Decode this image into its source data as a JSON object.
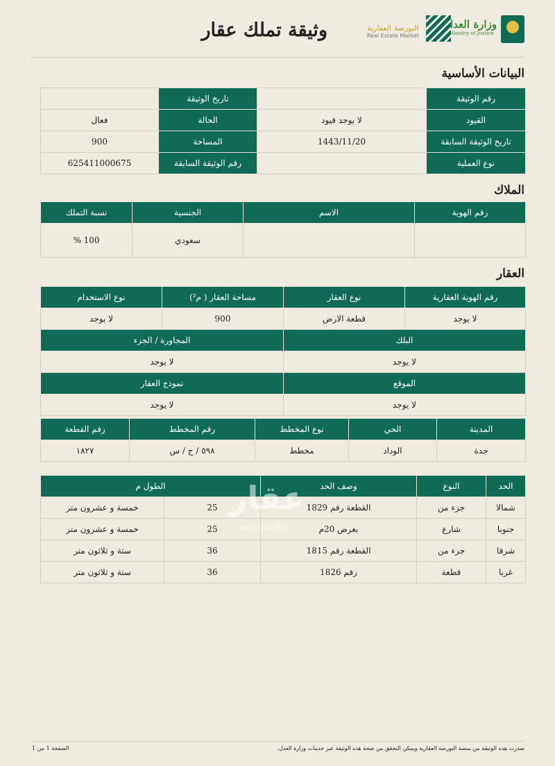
{
  "header": {
    "title": "وثيقة تملك عقار",
    "market_ar": "البورصة العقارية",
    "market_en": "Real Estate Market",
    "moj_ar": "وزارة العدل",
    "moj_en": "Ministry of Justice"
  },
  "basic": {
    "title": "البيانات الأساسية",
    "rows": [
      [
        "رقم الوثيقة",
        "",
        "تاريخ الوثيقة",
        ""
      ],
      [
        "القيود",
        "لا يوجد قيود",
        "الحالة",
        "فعال"
      ],
      [
        "تاريخ الوثيقة السابقة",
        "1443/11/20",
        "المساحة",
        "900"
      ],
      [
        "نوع العملية",
        "",
        "رقم الوثيقة السابقة",
        "625411000675"
      ]
    ]
  },
  "owners": {
    "title": "الملاك",
    "headers": [
      "رقم الهوية",
      "الاسم",
      "الجنسية",
      "نسبة التملك"
    ],
    "row": [
      "",
      "",
      "سعودي",
      "100 %"
    ]
  },
  "property": {
    "title": "العقار",
    "h1": [
      "رقم الهوية العقارية",
      "نوع العقار",
      "مساحة العقار ( م²)",
      "نوع الاستخدام"
    ],
    "r1": [
      "لا يوجد",
      "قطعة الارض",
      "900",
      "لا يوجد"
    ],
    "h2": [
      "البلك",
      "المجاورة / الجزء"
    ],
    "r2": [
      "لا يوجد",
      "لا يوجد"
    ],
    "h3": [
      "الموقع",
      "نموذج العقار"
    ],
    "r3": [
      "لا يوجد",
      "لا يوجد"
    ],
    "h4": [
      "المدينة",
      "الحي",
      "نوع المخطط",
      "رقم المخطط",
      "رقم القطعة"
    ],
    "r4": [
      "جدة",
      "الوداد",
      "مخطط",
      "٥٩٨ / ج / س",
      "١٨٢٧"
    ]
  },
  "bounds": {
    "headers": [
      "الحد",
      "النوع",
      "وصف الحد",
      "الطول م"
    ],
    "rows": [
      [
        "شمالا",
        "جزء من",
        "القطعة رقم 1829",
        "25",
        "خمسة و عشرون متر"
      ],
      [
        "جنوبا",
        "شارع",
        "بعرض 20م",
        "25",
        "خمسة و عشرون متر"
      ],
      [
        "شرقا",
        "جزء من",
        "القطعة رقم 1815",
        "36",
        "ستة و ثلاثون متر"
      ],
      [
        "غربا",
        "قطعة",
        "رقم 1826",
        "36",
        "ستة و ثلاثون متر"
      ]
    ]
  },
  "watermark": "عقار",
  "watermark_url": "sa.aqar.fm",
  "footer": {
    "note": "صدرت هذه الوثيقة من منصة البورصة العقارية ويمكن التحقق من صحة هذه الوثيقة عبر خدمات وزارة العدل.",
    "page": "الصفحة 1 من 1"
  },
  "colors": {
    "green": "#0f6b55",
    "gold": "#c9a227"
  }
}
